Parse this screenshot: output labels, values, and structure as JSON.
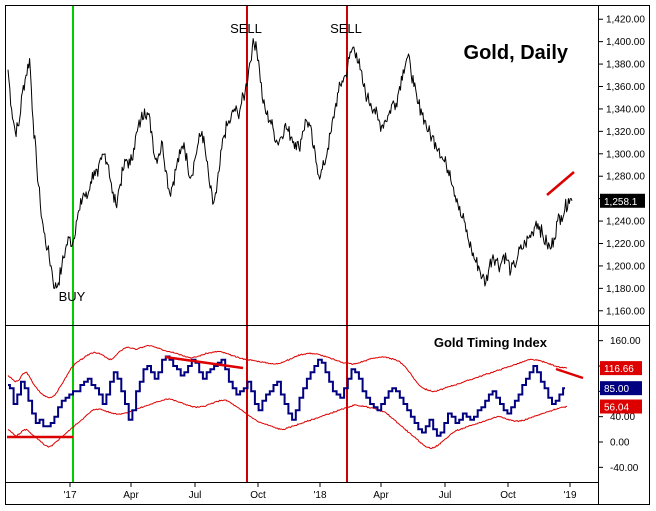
{
  "chart_data": [
    {
      "type": "line",
      "title": "Gold, Daily",
      "xlabel": "",
      "ylabel": "",
      "ylim": [
        1150,
        1430
      ],
      "x_tick_labels": [
        "'17",
        "Apr",
        "Jul",
        "Oct",
        "'18",
        "Apr",
        "Jul",
        "Oct",
        "'19"
      ],
      "y_ticks": [
        1160,
        1180,
        1200,
        1220,
        1240,
        1260,
        1280,
        1300,
        1320,
        1340,
        1360,
        1380,
        1400,
        1420
      ],
      "y_tick_labels": [
        "1,160.00",
        "1,180.00",
        "1,200.00",
        "1,220.00",
        "1,240.00",
        "1,260.00",
        "1,280.00",
        "1,300.00",
        "1,320.00",
        "1,340.00",
        "1,360.00",
        "1,380.00",
        "1,400.00",
        "1,420.00"
      ],
      "last_value_label": "1,258.1",
      "colors": {
        "price": "#000000",
        "buy_line": "#00cc00",
        "sell_line": "#cc0000",
        "annotation": "#dd0000",
        "last_value_box": "#000000"
      },
      "series": [
        {
          "values": [
            1375,
            1340,
            1320,
            1325,
            1355,
            1370,
            1385,
            1330,
            1290,
            1255,
            1230,
            1215,
            1200,
            1180,
            1185,
            1200,
            1215,
            1225,
            1220,
            1240,
            1250,
            1265,
            1260,
            1275,
            1285,
            1280,
            1295,
            1300,
            1290,
            1265,
            1255,
            1270,
            1285,
            1295,
            1290,
            1305,
            1320,
            1330,
            1340,
            1335,
            1320,
            1295,
            1300,
            1310,
            1285,
            1265,
            1275,
            1290,
            1300,
            1310,
            1290,
            1280,
            1295,
            1310,
            1320,
            1300,
            1275,
            1255,
            1265,
            1290,
            1315,
            1325,
            1330,
            1340,
            1335,
            1345,
            1355,
            1375,
            1395,
            1400,
            1375,
            1345,
            1335,
            1330,
            1320,
            1310,
            1315,
            1325,
            1320,
            1315,
            1310,
            1305,
            1320,
            1330,
            1325,
            1305,
            1290,
            1280,
            1290,
            1305,
            1320,
            1340,
            1355,
            1365,
            1370,
            1385,
            1395,
            1390,
            1375,
            1360,
            1350,
            1345,
            1340,
            1330,
            1325,
            1330,
            1335,
            1345,
            1345,
            1360,
            1375,
            1385,
            1380,
            1360,
            1345,
            1340,
            1330,
            1320,
            1315,
            1310,
            1305,
            1295,
            1290,
            1285,
            1270,
            1260,
            1245,
            1240,
            1225,
            1215,
            1205,
            1200,
            1190,
            1185,
            1200,
            1210,
            1205,
            1200,
            1210,
            1205,
            1195,
            1200,
            1210,
            1215,
            1220,
            1225,
            1230,
            1240,
            1235,
            1225,
            1220,
            1215,
            1225,
            1240,
            1245,
            1250,
            1260,
            1258.1
          ]
        }
      ],
      "markers": [
        {
          "x": "Dec 2016",
          "label": "BUY"
        },
        {
          "x": "Sep 2017",
          "label": "SELL"
        },
        {
          "x": "Jan 2018",
          "label": "SELL"
        }
      ]
    },
    {
      "type": "line",
      "title": "Gold Timing Index",
      "xlabel": "",
      "ylabel": "",
      "ylim": [
        -60,
        180
      ],
      "x_tick_labels": [
        "'17",
        "Apr",
        "Jul",
        "Oct",
        "'18",
        "Apr",
        "Jul",
        "Oct",
        "'19"
      ],
      "y_ticks": [
        -40,
        0,
        40,
        80,
        120,
        160
      ],
      "y_tick_labels": [
        "-40.00",
        "0.00",
        "40.00",
        "80.00",
        "120.00",
        "160.00"
      ],
      "value_labels": [
        {
          "text": "116.66",
          "value": 116.66,
          "color": "#dd0000"
        },
        {
          "text": "85.00",
          "value": 85.0,
          "color": "#000080"
        },
        {
          "text": "56.04",
          "value": 56.04,
          "color": "#dd0000"
        }
      ],
      "colors": {
        "index": "#000080",
        "bands": "#dd0000"
      },
      "series": [
        {
          "values": [
            90,
            85,
            60,
            75,
            95,
            85,
            65,
            45,
            30,
            35,
            25,
            25,
            30,
            40,
            55,
            65,
            70,
            75,
            80,
            80,
            90,
            95,
            100,
            90,
            85,
            75,
            60,
            75,
            95,
            110,
            100,
            80,
            60,
            35,
            50,
            80,
            95,
            115,
            120,
            110,
            100,
            110,
            130,
            135,
            130,
            120,
            115,
            105,
            110,
            120,
            130,
            125,
            110,
            100,
            110,
            115,
            120,
            125,
            130,
            115,
            95,
            85,
            75,
            80,
            85,
            95,
            80,
            60,
            50,
            65,
            75,
            80,
            90,
            95,
            75,
            60,
            45,
            35,
            50,
            70,
            85,
            100,
            110,
            120,
            130,
            125,
            110,
            95,
            80,
            75,
            70,
            85,
            100,
            115,
            110,
            100,
            80,
            70,
            60,
            55,
            50,
            60,
            70,
            80,
            85,
            80,
            70,
            60,
            50,
            40,
            30,
            20,
            15,
            25,
            35,
            20,
            10,
            15,
            30,
            45,
            40,
            30,
            35,
            45,
            40,
            35,
            40,
            50,
            55,
            65,
            75,
            80,
            70,
            60,
            50,
            45,
            55,
            65,
            75,
            90,
            100,
            110,
            120,
            110,
            95,
            85,
            70,
            60,
            65,
            75,
            85
          ]
        },
        {
          "values": [
            105,
            100,
            95,
            98,
            108,
            110,
            100,
            90,
            82,
            76,
            72,
            70,
            72,
            78,
            88,
            98,
            108,
            118,
            124,
            128,
            132,
            136,
            140,
            142,
            140,
            138,
            134,
            130,
            132,
            138,
            144,
            148,
            150,
            148,
            146,
            148,
            150,
            152,
            152,
            150,
            148,
            146,
            144,
            143,
            142,
            140,
            138,
            136,
            134,
            133,
            134,
            136,
            138,
            140,
            141,
            142,
            143,
            142,
            140,
            138,
            136,
            134,
            132,
            131,
            130,
            129,
            128,
            127,
            126,
            125,
            124,
            123,
            124,
            126,
            128,
            130,
            133,
            136,
            138,
            139,
            140,
            140,
            139,
            138,
            136,
            134,
            132,
            130,
            128,
            126,
            125,
            124,
            123,
            124,
            126,
            128,
            130,
            132,
            133,
            134,
            134,
            133,
            132,
            130,
            128,
            124,
            118,
            110,
            102,
            94,
            88,
            84,
            82,
            80,
            80,
            82,
            84,
            86,
            88,
            90,
            92,
            94,
            96,
            98,
            100,
            102,
            104,
            106,
            108,
            110,
            112,
            114,
            116,
            118,
            120,
            122,
            124,
            126,
            128,
            130,
            130,
            129,
            128,
            126,
            124,
            122,
            120,
            118,
            117,
            116.66
          ]
        },
        {
          "values": [
            20,
            15,
            10,
            12,
            18,
            20,
            15,
            10,
            5,
            0,
            -5,
            -8,
            -6,
            0,
            5,
            10,
            15,
            20,
            25,
            30,
            35,
            40,
            45,
            50,
            52,
            52,
            50,
            48,
            46,
            45,
            44,
            45,
            46,
            48,
            50,
            52,
            54,
            56,
            58,
            60,
            62,
            64,
            66,
            68,
            68,
            66,
            64,
            62,
            60,
            58,
            56,
            55,
            55,
            56,
            58,
            60,
            62,
            64,
            66,
            66,
            64,
            60,
            56,
            52,
            48,
            44,
            40,
            36,
            32,
            30,
            28,
            26,
            24,
            22,
            20,
            20,
            22,
            24,
            26,
            28,
            30,
            32,
            34,
            36,
            38,
            40,
            42,
            44,
            46,
            48,
            50,
            52,
            54,
            56,
            58,
            58,
            57,
            56,
            55,
            54,
            52,
            50,
            48,
            45,
            40,
            35,
            30,
            25,
            20,
            15,
            10,
            5,
            0,
            -5,
            -8,
            -10,
            -8,
            -5,
            0,
            5,
            10,
            15,
            18,
            20,
            22,
            24,
            26,
            28,
            30,
            32,
            34,
            36,
            38,
            40,
            40,
            38,
            36,
            34,
            33,
            33,
            34,
            36,
            38,
            40,
            42,
            44,
            46,
            48,
            50,
            52,
            54,
            55,
            56.04
          ]
        }
      ],
      "annotations": [
        {
          "type": "trendline",
          "label": ""
        }
      ]
    }
  ]
}
